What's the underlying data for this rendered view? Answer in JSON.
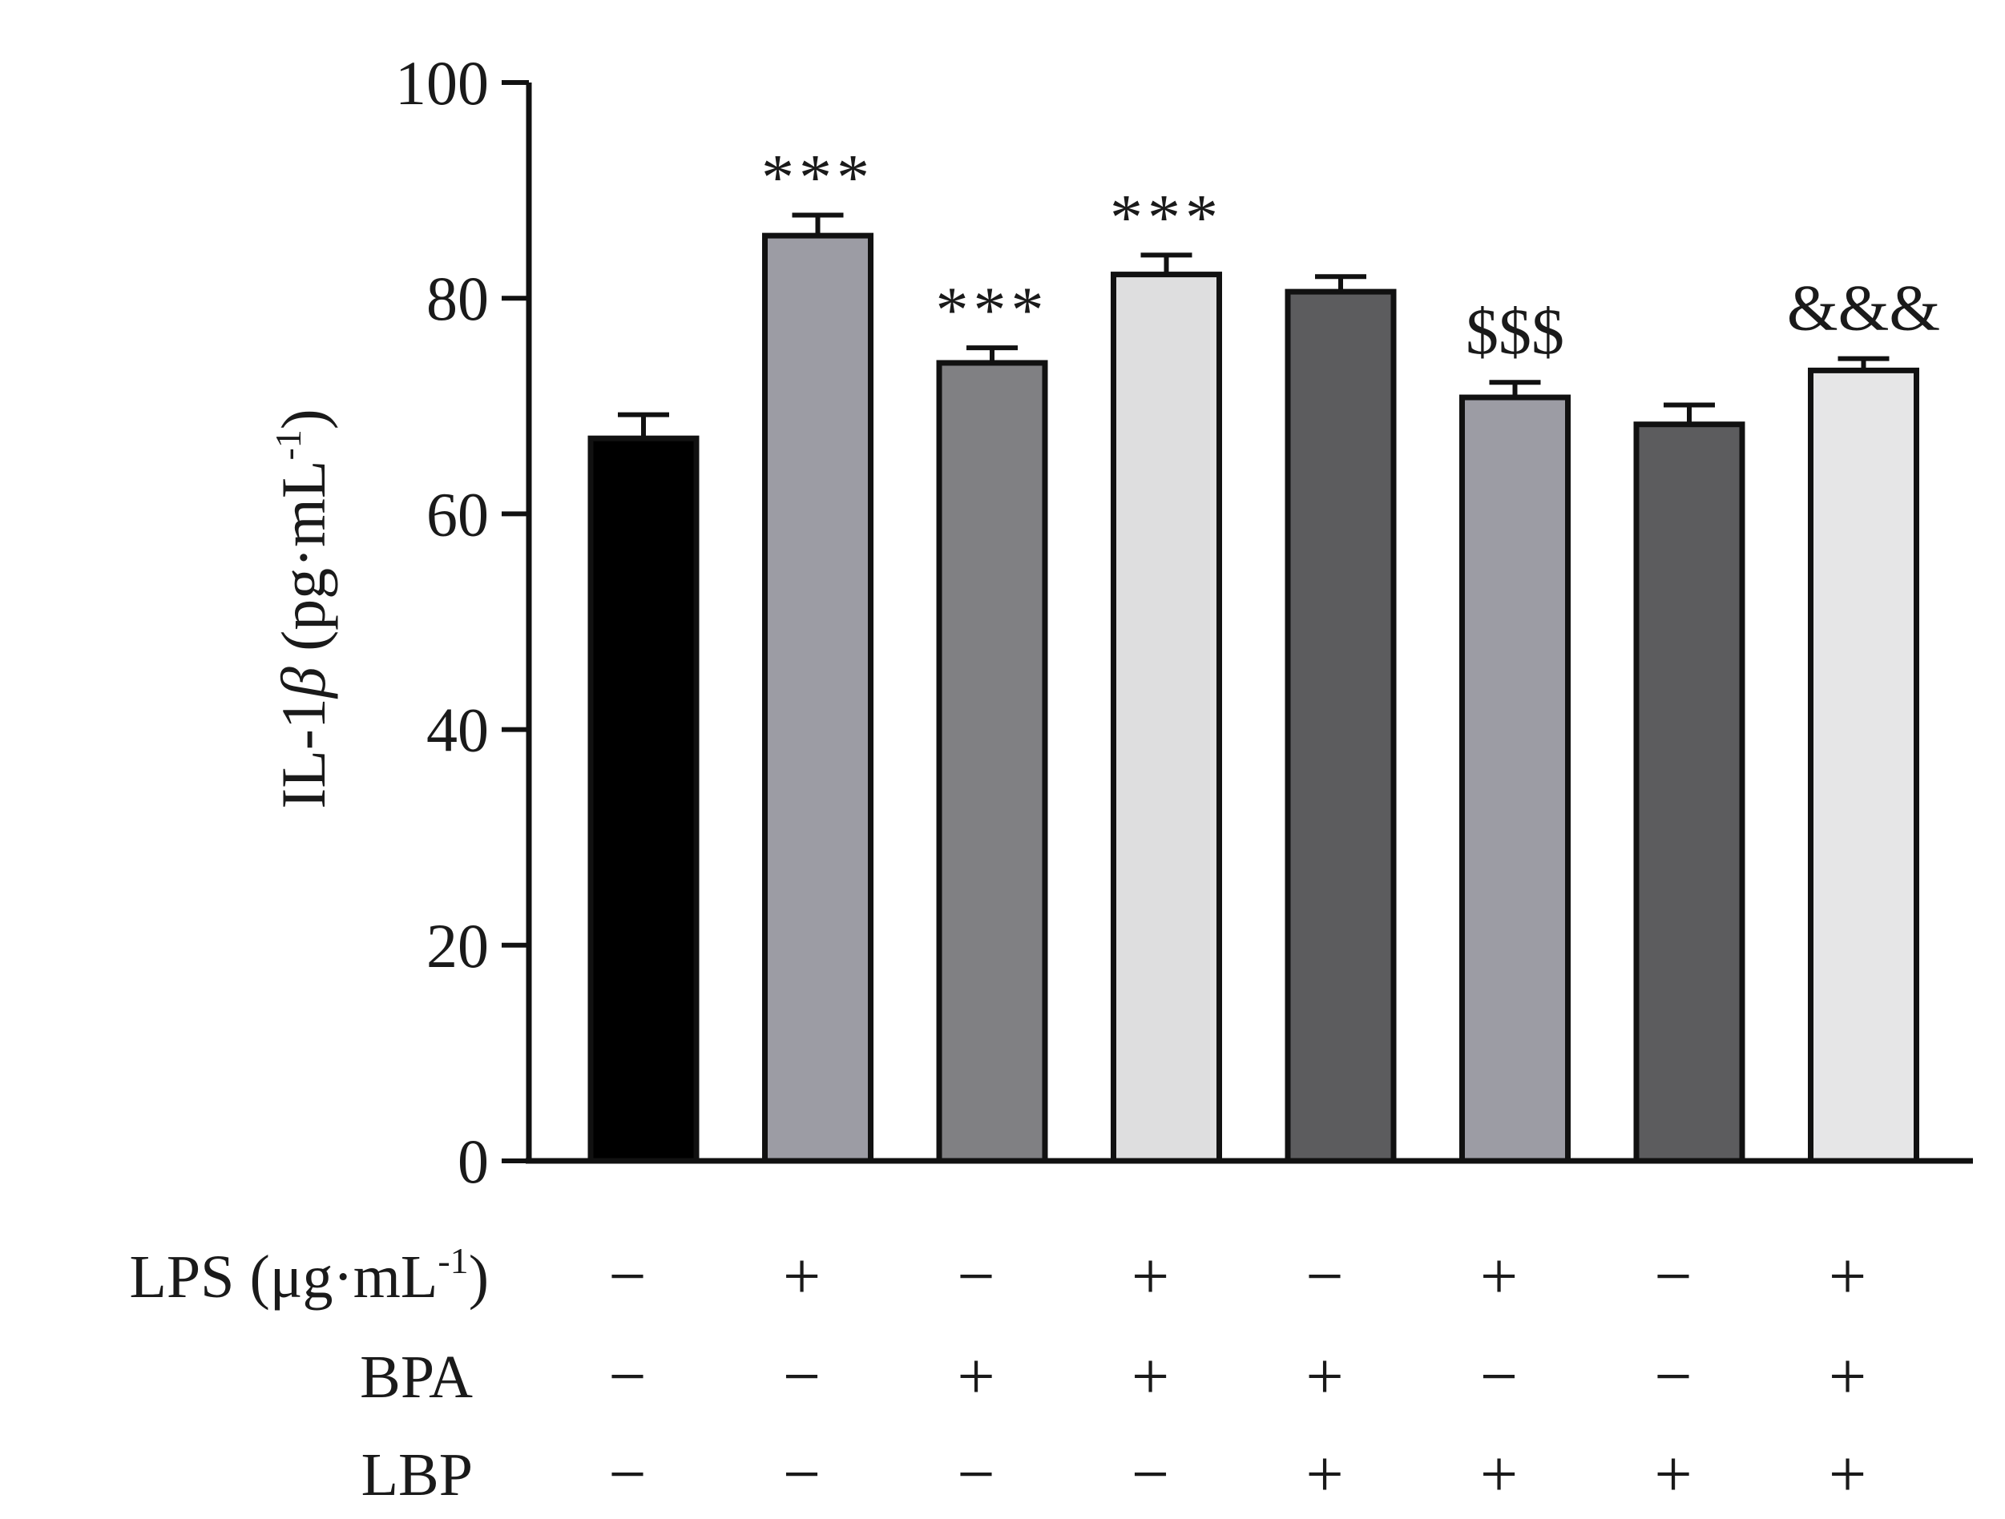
{
  "chart_data": {
    "type": "bar",
    "ylabel": {
      "main": "IL-1",
      "symbol": "β",
      "unit_open": " (pg·mL",
      "unit_sup": "-1",
      "unit_close": ")"
    },
    "ylim": [
      0,
      100
    ],
    "yticks": [
      0,
      20,
      40,
      60,
      80,
      100
    ],
    "grid": false,
    "values": [
      67.0,
      85.8,
      74.0,
      82.2,
      80.6,
      70.8,
      68.3,
      73.3
    ],
    "errors": [
      2.2,
      1.9,
      1.4,
      1.8,
      1.4,
      1.4,
      1.8,
      1.1
    ],
    "colors": [
      "#000000",
      "#9c9ca4",
      "#808083",
      "#dededf",
      "#5c5c5e",
      "#9c9ca4",
      "#5c5c5e",
      "#e6e6e7"
    ],
    "annotations": [
      "",
      "***",
      "***",
      "***",
      "",
      "$$$",
      "",
      "&&&"
    ],
    "conditions": [
      {
        "label": "LPS (μg·mL",
        "label_sup": "-1",
        "label_close": ")",
        "signs": [
          "−",
          "+",
          "−",
          "+",
          "−",
          "+",
          "−",
          "+"
        ]
      },
      {
        "label": "BPA",
        "label_sup": "",
        "label_close": "",
        "signs": [
          "−",
          "−",
          "+",
          "+",
          "+",
          "−",
          "−",
          "+"
        ]
      },
      {
        "label": "LBP",
        "label_sup": "",
        "label_close": "",
        "signs": [
          "−",
          "−",
          "−",
          "−",
          "+",
          "+",
          "+",
          "+"
        ]
      }
    ]
  }
}
